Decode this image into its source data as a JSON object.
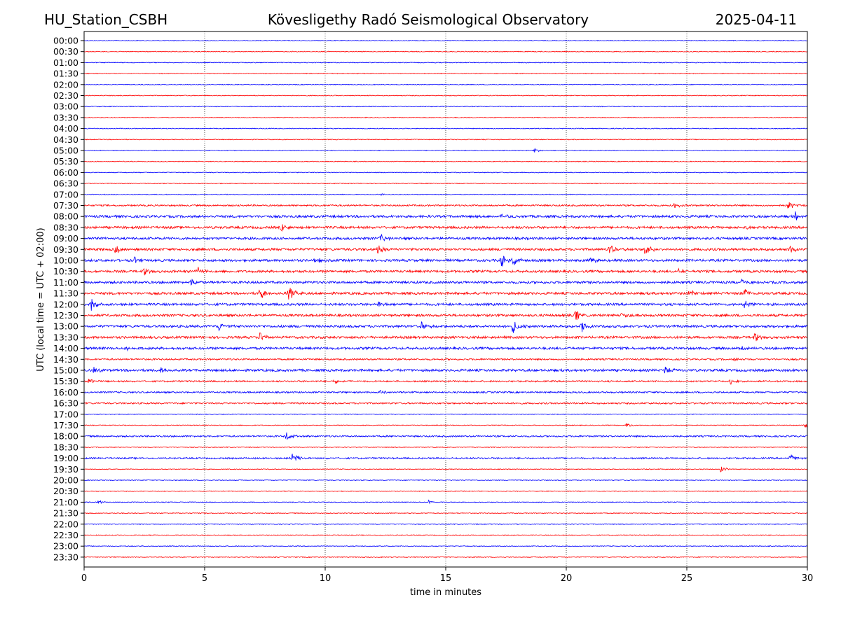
{
  "header": {
    "station": "HU_Station_CSBH",
    "observatory": "Kövesligethy Radó Seismological Observatory",
    "date": "2025-04-11"
  },
  "chart_data": {
    "type": "line",
    "title": "Kövesligethy Radó Seismological Observatory",
    "xlabel": "time in minutes",
    "ylabel": "UTC (local time = UTC + 02:00)",
    "xlim": [
      0,
      30
    ],
    "x_ticks": [
      0,
      5,
      10,
      15,
      20,
      25,
      30
    ],
    "grid": "vertical dotted at 5-minute ticks",
    "colors": {
      "even_hour_rows": "#0000ff",
      "half_hour_rows": "#ff0000",
      "grid": "#000000"
    },
    "rows": [
      "00:00",
      "00:30",
      "01:00",
      "01:30",
      "02:00",
      "02:30",
      "03:00",
      "03:30",
      "04:00",
      "04:30",
      "05:00",
      "05:30",
      "06:00",
      "06:30",
      "07:00",
      "07:30",
      "08:00",
      "08:30",
      "09:00",
      "09:30",
      "10:00",
      "10:30",
      "11:00",
      "11:30",
      "12:00",
      "12:30",
      "13:00",
      "13:30",
      "14:00",
      "14:30",
      "15:00",
      "15:30",
      "16:00",
      "16:30",
      "17:00",
      "17:30",
      "18:00",
      "18:30",
      "19:00",
      "19:30",
      "20:00",
      "20:30",
      "21:00",
      "21:30",
      "22:00",
      "22:30",
      "23:00",
      "23:30"
    ],
    "noise_level": [
      1,
      1,
      1,
      1,
      1,
      1,
      1,
      1,
      1,
      1,
      1,
      1,
      1,
      1,
      1,
      2,
      3,
      3,
      3,
      3,
      3,
      3,
      3,
      3,
      3,
      3,
      3,
      3,
      3,
      2,
      3,
      2,
      2,
      2,
      1,
      1,
      2,
      1,
      2,
      1,
      1,
      1,
      1,
      1,
      1,
      1,
      1,
      1
    ],
    "events": [
      {
        "row": "05:00",
        "t": 18.7,
        "amp": 3
      },
      {
        "row": "07:00",
        "t": 12.3,
        "amp": 2
      },
      {
        "row": "07:30",
        "t": 29.2,
        "amp": 8
      },
      {
        "row": "07:30",
        "t": 24.5,
        "amp": 4
      },
      {
        "row": "08:00",
        "t": 17.3,
        "amp": 4
      },
      {
        "row": "08:00",
        "t": 29.5,
        "amp": 6
      },
      {
        "row": "08:30",
        "t": 8.2,
        "amp": 8
      },
      {
        "row": "08:30",
        "t": 27.5,
        "amp": 3
      },
      {
        "row": "09:00",
        "t": 12.3,
        "amp": 6
      },
      {
        "row": "09:30",
        "t": 1.3,
        "amp": 7
      },
      {
        "row": "09:30",
        "t": 12.2,
        "amp": 6
      },
      {
        "row": "09:30",
        "t": 21.8,
        "amp": 7
      },
      {
        "row": "09:30",
        "t": 23.3,
        "amp": 14
      },
      {
        "row": "09:30",
        "t": 29.3,
        "amp": 6
      },
      {
        "row": "10:00",
        "t": 2.1,
        "amp": 5
      },
      {
        "row": "10:00",
        "t": 9.6,
        "amp": 5
      },
      {
        "row": "10:00",
        "t": 17.3,
        "amp": 12
      },
      {
        "row": "10:00",
        "t": 17.8,
        "amp": 9
      },
      {
        "row": "10:00",
        "t": 21.0,
        "amp": 5
      },
      {
        "row": "10:30",
        "t": 2.5,
        "amp": 5
      },
      {
        "row": "10:30",
        "t": 4.7,
        "amp": 7
      },
      {
        "row": "10:30",
        "t": 24.7,
        "amp": 5
      },
      {
        "row": "11:00",
        "t": 4.4,
        "amp": 6
      },
      {
        "row": "11:00",
        "t": 27.3,
        "amp": 6
      },
      {
        "row": "11:30",
        "t": 7.3,
        "amp": 10
      },
      {
        "row": "11:30",
        "t": 8.5,
        "amp": 12
      },
      {
        "row": "11:30",
        "t": 25.1,
        "amp": 7
      },
      {
        "row": "11:30",
        "t": 27.4,
        "amp": 7
      },
      {
        "row": "12:00",
        "t": 0.3,
        "amp": 10
      },
      {
        "row": "12:00",
        "t": 12.2,
        "amp": 6
      },
      {
        "row": "12:00",
        "t": 27.4,
        "amp": 7
      },
      {
        "row": "12:30",
        "t": 20.4,
        "amp": 8
      },
      {
        "row": "12:30",
        "t": 22.3,
        "amp": 5
      },
      {
        "row": "13:00",
        "t": 5.6,
        "amp": 7
      },
      {
        "row": "13:00",
        "t": 14.0,
        "amp": 6
      },
      {
        "row": "13:00",
        "t": 17.8,
        "amp": 11
      },
      {
        "row": "13:00",
        "t": 20.6,
        "amp": 10
      },
      {
        "row": "13:30",
        "t": 7.3,
        "amp": 7
      },
      {
        "row": "13:30",
        "t": 27.8,
        "amp": 7
      },
      {
        "row": "14:00",
        "t": 1.8,
        "amp": 6
      },
      {
        "row": "14:00",
        "t": 27.2,
        "amp": 6
      },
      {
        "row": "14:30",
        "t": 27.0,
        "amp": 4
      },
      {
        "row": "15:00",
        "t": 0.4,
        "amp": 6
      },
      {
        "row": "15:00",
        "t": 3.2,
        "amp": 5
      },
      {
        "row": "15:00",
        "t": 24.1,
        "amp": 8
      },
      {
        "row": "15:30",
        "t": 0.2,
        "amp": 5
      },
      {
        "row": "15:30",
        "t": 10.4,
        "amp": 5
      },
      {
        "row": "15:30",
        "t": 26.8,
        "amp": 4
      },
      {
        "row": "16:00",
        "t": 12.3,
        "amp": 4
      },
      {
        "row": "17:30",
        "t": 22.5,
        "amp": 4
      },
      {
        "row": "17:30",
        "t": 29.9,
        "amp": 4
      },
      {
        "row": "18:00",
        "t": 8.4,
        "amp": 6
      },
      {
        "row": "19:00",
        "t": 8.6,
        "amp": 10
      },
      {
        "row": "19:00",
        "t": 29.3,
        "amp": 6
      },
      {
        "row": "19:30",
        "t": 26.4,
        "amp": 5
      },
      {
        "row": "21:00",
        "t": 0.6,
        "amp": 3
      },
      {
        "row": "21:00",
        "t": 14.3,
        "amp": 3
      }
    ]
  }
}
